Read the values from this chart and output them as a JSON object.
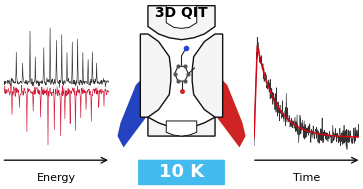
{
  "background_color": "#ffffff",
  "left_panel": {
    "label": "Energy",
    "black_color": "#2a2a2a",
    "red_color": "#cc0022"
  },
  "right_panel": {
    "label": "Time",
    "black_color": "#1a1a1a",
    "red_color": "#dd0011"
  },
  "center_panel": {
    "label_10k": "10 K",
    "label_3dqit": "3D QIT",
    "box_color": "#44bbee",
    "text_color": "#ffffff",
    "blue_color": "#1133bb",
    "red_color": "#cc1111",
    "trap_face": "#f5f5f5",
    "trap_edge": "#111111"
  },
  "arrow_color": "#111111",
  "label_fontsize": 8,
  "label_10k_fontsize": 12
}
